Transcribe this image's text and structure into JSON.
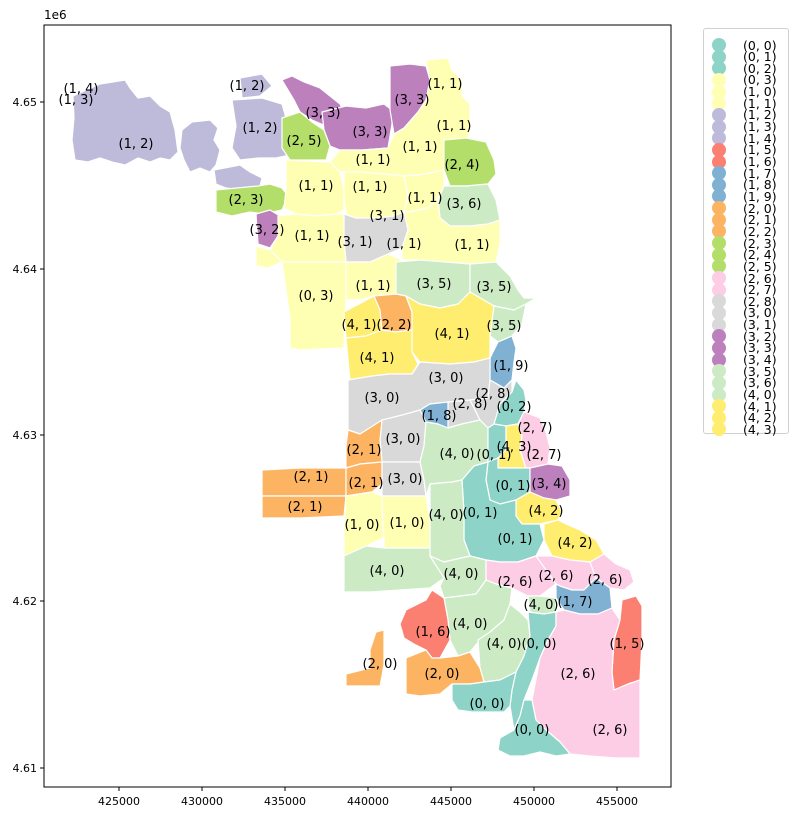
{
  "axes": {
    "offset_text": "1e6",
    "x_ticks": [
      "425000",
      "430000",
      "435000",
      "440000",
      "445000",
      "450000",
      "455000"
    ],
    "y_ticks": [
      "4.61",
      "4.62",
      "4.63",
      "4.64",
      "4.65"
    ]
  },
  "colors": {
    "c00": "#8dd3c7",
    "c10": "#ffffb3",
    "c12": "#bebada",
    "c15": "#fb8072",
    "c17": "#80b1d3",
    "c20": "#fdb462",
    "c23": "#b3de69",
    "c26": "#fccde5",
    "c28": "#d9d9d9",
    "c32": "#bc80bd",
    "c35": "#ccebc5",
    "c41": "#ffed6f"
  },
  "legend": [
    {
      "label": "(0, 0)",
      "color": "#8dd3c7"
    },
    {
      "label": "(0, 1)",
      "color": "#8dd3c7"
    },
    {
      "label": "(0, 2)",
      "color": "#8dd3c7"
    },
    {
      "label": "(0, 3)",
      "color": "#ffffb3"
    },
    {
      "label": "(1, 0)",
      "color": "#ffffb3"
    },
    {
      "label": "(1, 1)",
      "color": "#ffffb3"
    },
    {
      "label": "(1, 2)",
      "color": "#bebada"
    },
    {
      "label": "(1, 3)",
      "color": "#bebada"
    },
    {
      "label": "(1, 4)",
      "color": "#bebada"
    },
    {
      "label": "(1, 5)",
      "color": "#fb8072"
    },
    {
      "label": "(1, 6)",
      "color": "#fb8072"
    },
    {
      "label": "(1, 7)",
      "color": "#80b1d3"
    },
    {
      "label": "(1, 8)",
      "color": "#80b1d3"
    },
    {
      "label": "(1, 9)",
      "color": "#80b1d3"
    },
    {
      "label": "(2, 0)",
      "color": "#fdb462"
    },
    {
      "label": "(2, 1)",
      "color": "#fdb462"
    },
    {
      "label": "(2, 2)",
      "color": "#fdb462"
    },
    {
      "label": "(2, 3)",
      "color": "#b3de69"
    },
    {
      "label": "(2, 4)",
      "color": "#b3de69"
    },
    {
      "label": "(2, 5)",
      "color": "#b3de69"
    },
    {
      "label": "(2, 6)",
      "color": "#fccde5"
    },
    {
      "label": "(2, 7)",
      "color": "#fccde5"
    },
    {
      "label": "(2, 8)",
      "color": "#d9d9d9"
    },
    {
      "label": "(3, 0)",
      "color": "#d9d9d9"
    },
    {
      "label": "(3, 1)",
      "color": "#d9d9d9"
    },
    {
      "label": "(3, 2)",
      "color": "#bc80bd"
    },
    {
      "label": "(3, 3)",
      "color": "#bc80bd"
    },
    {
      "label": "(3, 4)",
      "color": "#bc80bd"
    },
    {
      "label": "(3, 5)",
      "color": "#ccebc5"
    },
    {
      "label": "(3, 6)",
      "color": "#ccebc5"
    },
    {
      "label": "(4, 0)",
      "color": "#ccebc5"
    },
    {
      "label": "(4, 1)",
      "color": "#ffed6f"
    },
    {
      "label": "(4, 2)",
      "color": "#ffed6f"
    },
    {
      "label": "(4, 3)",
      "color": "#ffed6f"
    }
  ],
  "region_labels": [
    "(1, 4)",
    "(1, 3)",
    "(1, 2)",
    "(1, 2)",
    "(1, 2)",
    "(3, 3)",
    "(3, 3)",
    "(3, 3)",
    "(1, 1)",
    "(2, 5)",
    "(1, 1)",
    "(1, 1)",
    "(1, 1)",
    "(2, 4)",
    "(1, 1)",
    "(1, 1)",
    "(1, 1)",
    "(3, 6)",
    "(2, 3)",
    "(3, 1)",
    "(3, 2)",
    "(1, 1)",
    "(3, 1)",
    "(1, 1)",
    "(1, 1)",
    "(0, 3)",
    "(1, 1)",
    "(3, 5)",
    "(3, 5)",
    "(4, 1)",
    "(2, 2)",
    "(4, 1)",
    "(3, 5)",
    "(4, 1)",
    "(1, 9)",
    "(3, 0)",
    "(3, 0)",
    "(2, 8)",
    "(2, 8)",
    "(0, 2)",
    "(1, 8)",
    "(2, 7)",
    "(3, 0)",
    "(2, 1)",
    "(4, 0)",
    "(0, 1)",
    "(4, 3)",
    "(2, 7)",
    "(2, 1)",
    "(2, 1)",
    "(3, 0)",
    "(0, 1)",
    "(3, 4)",
    "(2, 1)",
    "(4, 2)",
    "(4, 0)",
    "(0, 1)",
    "(1, 0)",
    "(1, 0)",
    "(0, 1)",
    "(4, 2)",
    "(4, 0)",
    "(4, 0)",
    "(2, 6)",
    "(2, 6)",
    "(2, 6)",
    "(4, 0)",
    "(1, 7)",
    "(4, 0)",
    "(1, 6)",
    "(4, 0)",
    "(0, 0)",
    "(1, 5)",
    "(2, 0)",
    "(2, 0)",
    "(2, 6)",
    "(0, 0)",
    "(0, 0)",
    "(2, 6)"
  ]
}
